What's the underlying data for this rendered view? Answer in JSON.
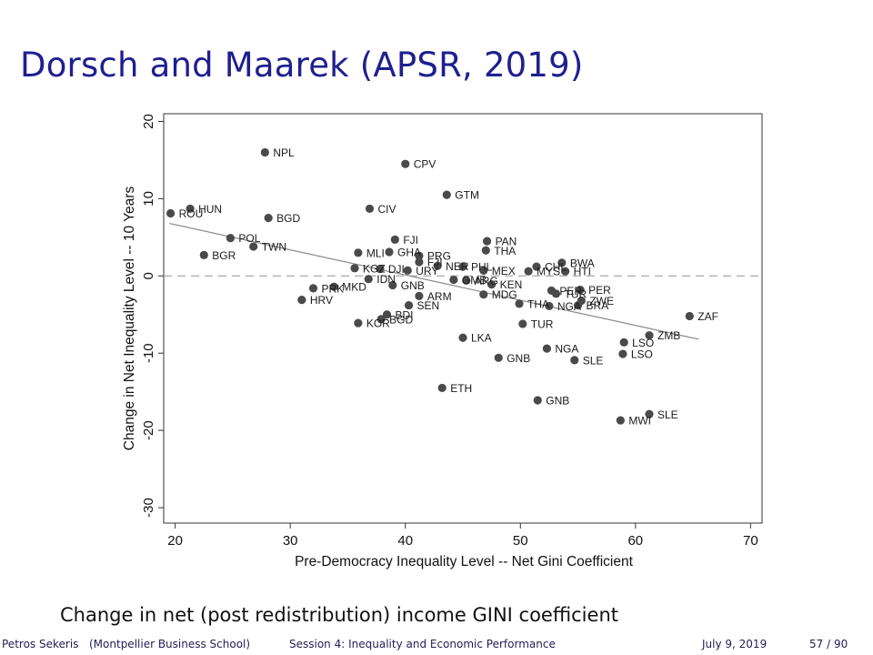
{
  "slide": {
    "title": "Dorsch and Maarek (APSR, 2019)",
    "caption": "Change in net (post redistribution) income GINI coefficient"
  },
  "footer": {
    "author": "Petros Sekeris",
    "institution": "(Montpellier Business School)",
    "session": "Session 4: Inequality and Economic Performance",
    "date": "July 9, 2019",
    "page": "57 / 90"
  },
  "colors": {
    "title": "#1f1f8f",
    "points": "#4a4a4a",
    "fit_line": "#8a8a8a",
    "zero_line": "#b0b0b0"
  },
  "chart_data": {
    "type": "scatter",
    "xlabel": "Pre-Democracy Inequality Level -- Net Gini Coefficient",
    "ylabel": "Change in Net Inequality Level -- 10 Years",
    "xlim": [
      19,
      71
    ],
    "ylim": [
      -32,
      21
    ],
    "xticks": [
      20,
      30,
      40,
      50,
      60,
      70
    ],
    "yticks": [
      -30,
      -20,
      -10,
      0,
      10,
      20
    ],
    "reference_line_y": 0,
    "fit_line": {
      "x": [
        19.5,
        65.5
      ],
      "y": [
        6.8,
        -8.2
      ]
    },
    "grid": false,
    "legend": "none",
    "points": [
      {
        "label": "NPL",
        "x": 27.8,
        "y": 16.0
      },
      {
        "label": "CPV",
        "x": 40.0,
        "y": 14.5
      },
      {
        "label": "GTM",
        "x": 43.6,
        "y": 10.5
      },
      {
        "label": "HUN",
        "x": 21.3,
        "y": 8.7
      },
      {
        "label": "ROU",
        "x": 19.6,
        "y": 8.1
      },
      {
        "label": "CIV",
        "x": 36.9,
        "y": 8.7
      },
      {
        "label": "BGD",
        "x": 28.1,
        "y": 7.5
      },
      {
        "label": "POL",
        "x": 24.8,
        "y": 4.9
      },
      {
        "label": "TWN",
        "x": 26.8,
        "y": 3.8
      },
      {
        "label": "BGR",
        "x": 22.5,
        "y": 2.7
      },
      {
        "label": "FJI",
        "x": 39.1,
        "y": 4.7
      },
      {
        "label": "PAN",
        "x": 47.1,
        "y": 4.5
      },
      {
        "label": "THA",
        "x": 47.0,
        "y": 3.3
      },
      {
        "label": "MLI",
        "x": 35.9,
        "y": 3.0
      },
      {
        "label": "GHA",
        "x": 38.6,
        "y": 3.1
      },
      {
        "label": "PRG",
        "x": 41.2,
        "y": 2.6
      },
      {
        "label": "BWA",
        "x": 53.6,
        "y": 1.7
      },
      {
        "label": "CHL",
        "x": 51.4,
        "y": 1.2
      },
      {
        "label": "FJI",
        "x": 41.2,
        "y": 1.8
      },
      {
        "label": "NER",
        "x": 42.8,
        "y": 1.3
      },
      {
        "label": "PHL",
        "x": 45.0,
        "y": 1.2
      },
      {
        "label": "KGZ",
        "x": 35.6,
        "y": 1.0
      },
      {
        "label": "DJI",
        "x": 37.8,
        "y": 0.9
      },
      {
        "label": "URY",
        "x": 40.2,
        "y": 0.7
      },
      {
        "label": "MEX",
        "x": 46.8,
        "y": 0.7
      },
      {
        "label": "MYS",
        "x": 50.7,
        "y": 0.6
      },
      {
        "label": "HTI",
        "x": 53.9,
        "y": 0.6
      },
      {
        "label": "IDN",
        "x": 36.8,
        "y": -0.4
      },
      {
        "label": "GMB",
        "x": 44.2,
        "y": -0.5
      },
      {
        "label": "ARG",
        "x": 45.3,
        "y": -0.6
      },
      {
        "label": "GNB",
        "x": 38.9,
        "y": -1.2
      },
      {
        "label": "KEN",
        "x": 47.5,
        "y": -1.1
      },
      {
        "label": "PRK",
        "x": 32.0,
        "y": -1.6
      },
      {
        "label": "MKD",
        "x": 33.8,
        "y": -1.4
      },
      {
        "label": "PER",
        "x": 52.7,
        "y": -1.9
      },
      {
        "label": "PER",
        "x": 55.2,
        "y": -1.8
      },
      {
        "label": "TUR",
        "x": 53.1,
        "y": -2.3
      },
      {
        "label": "MDG",
        "x": 46.8,
        "y": -2.4
      },
      {
        "label": "ARM",
        "x": 41.2,
        "y": -2.6
      },
      {
        "label": "SEN",
        "x": 40.3,
        "y": -3.8
      },
      {
        "label": "HRV",
        "x": 31.0,
        "y": -3.1
      },
      {
        "label": "THA",
        "x": 49.9,
        "y": -3.6
      },
      {
        "label": "NGA",
        "x": 52.5,
        "y": -3.9
      },
      {
        "label": "BRA",
        "x": 55.0,
        "y": -3.8
      },
      {
        "label": "ZWE",
        "x": 55.3,
        "y": -3.2
      },
      {
        "label": "BDI",
        "x": 38.4,
        "y": -5.0
      },
      {
        "label": "KOR",
        "x": 35.9,
        "y": -6.1
      },
      {
        "label": "BGD",
        "x": 37.9,
        "y": -5.6
      },
      {
        "label": "TUR",
        "x": 50.2,
        "y": -6.2
      },
      {
        "label": "ZAF",
        "x": 64.7,
        "y": -5.2
      },
      {
        "label": "ZMB",
        "x": 61.2,
        "y": -7.7
      },
      {
        "label": "LKA",
        "x": 45.0,
        "y": -8.0
      },
      {
        "label": "LSO",
        "x": 59.0,
        "y": -8.6
      },
      {
        "label": "NGA",
        "x": 52.3,
        "y": -9.4
      },
      {
        "label": "LSO",
        "x": 58.9,
        "y": -10.1
      },
      {
        "label": "GNB",
        "x": 48.1,
        "y": -10.6
      },
      {
        "label": "SLE",
        "x": 54.7,
        "y": -10.9
      },
      {
        "label": "ETH",
        "x": 43.2,
        "y": -14.5
      },
      {
        "label": "GNB",
        "x": 51.5,
        "y": -16.1
      },
      {
        "label": "SLE",
        "x": 61.2,
        "y": -17.9
      },
      {
        "label": "MWI",
        "x": 58.7,
        "y": -18.7
      }
    ]
  }
}
